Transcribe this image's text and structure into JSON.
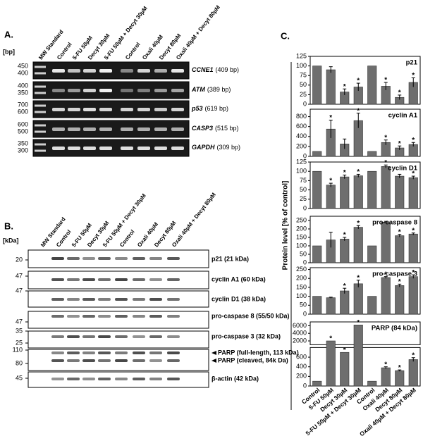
{
  "panel_a": {
    "label": "A.",
    "unit": "[bp]",
    "lanes": [
      "MW Standard",
      "Control",
      "5-FU 50µM",
      "Decyt 30µM",
      "5-FU 50µM + Decyt 30µM",
      "Control",
      "Oxali 40µM",
      "Decyt 80µM",
      "Oxali 40µM + Decyt 80µM"
    ],
    "gels": [
      {
        "gene": "CCNE1",
        "size": "(409 bp)",
        "markers": [
          "450",
          "400"
        ]
      },
      {
        "gene": "ATM",
        "size": "(389 bp)",
        "markers": [
          "400",
          "350"
        ]
      },
      {
        "gene": "p53",
        "size": "(619 bp)",
        "markers": [
          "700",
          "600"
        ]
      },
      {
        "gene": "CASP3",
        "size": "(515 bp)",
        "markers": [
          "600",
          "500"
        ]
      },
      {
        "gene": "GAPDH",
        "size": "(309 bp)",
        "markers": [
          "350",
          "300"
        ]
      }
    ]
  },
  "panel_b": {
    "label": "B.",
    "unit": "[kDa]",
    "lanes": [
      "MW Standard",
      "Control",
      "5-FU 50µM",
      "Decyt 30µM",
      "5-FU 50µM + Decyt 30µM",
      "Control",
      "Oxali 40µM",
      "Decyt 80µM",
      "Oxali 40µM + Decyt 80µM"
    ],
    "blots": [
      {
        "markers": [
          "20"
        ],
        "labels": [
          "p21 (21 kDa)"
        ]
      },
      {
        "markers": [
          "47"
        ],
        "labels": [
          "cyclin A1 (60 kDa)"
        ]
      },
      {
        "markers": [
          "47"
        ],
        "labels": [
          "cyclin D1 (38 kDa)"
        ]
      },
      {
        "markers": [
          "47"
        ],
        "labels": [
          "pro-caspase 8 (55/50 kDa)"
        ]
      },
      {
        "markers": [
          "35",
          "25"
        ],
        "labels": [
          "pro-caspase 3 (32 kDa)"
        ]
      },
      {
        "markers": [
          "110",
          "80"
        ],
        "labels": [
          "PARP (full-length, 113 kDa)",
          "PARP (cleaved, 84k Da)"
        ]
      },
      {
        "markers": [
          "45"
        ],
        "labels": [
          "β-actin (42 kDa)"
        ]
      }
    ]
  },
  "panel_c": {
    "label": "C.",
    "y_axis_label": "Protein level [% of control]"
  },
  "chart_data": [
    {
      "type": "bar",
      "title": "p21",
      "color": "#6e6e6e",
      "values": [
        100,
        90,
        32,
        45,
        100,
        47,
        18,
        57
      ],
      "errors": [
        null,
        8,
        8,
        10,
        null,
        10,
        6,
        12
      ],
      "significance": [
        null,
        null,
        "*",
        "*",
        null,
        "*",
        "*",
        "*"
      ],
      "ylim": [
        0,
        125
      ],
      "yticks": [
        0,
        25,
        50,
        75,
        100,
        125
      ]
    },
    {
      "type": "bar",
      "title": "cyclin A1",
      "color": "#6e6e6e",
      "values": [
        100,
        550,
        250,
        720,
        100,
        280,
        170,
        240
      ],
      "errors": [
        null,
        180,
        100,
        150,
        null,
        50,
        40,
        40
      ],
      "significance": [
        null,
        "*",
        null,
        "*",
        null,
        "*",
        "*",
        "*"
      ],
      "ylim": [
        0,
        950
      ],
      "yticks": [
        0,
        200,
        400,
        600,
        800
      ]
    },
    {
      "type": "bar",
      "title": "cyclin D1",
      "color": "#6e6e6e",
      "values": [
        100,
        63,
        85,
        88,
        100,
        113,
        87,
        83
      ],
      "errors": [
        null,
        5,
        5,
        4,
        null,
        4,
        5,
        4
      ],
      "significance": [
        null,
        "*",
        "*",
        "*",
        null,
        "*",
        null,
        "*"
      ],
      "ylim": [
        0,
        125
      ],
      "yticks": [
        0,
        25,
        50,
        75,
        100,
        125
      ]
    },
    {
      "type": "bar",
      "title": "pro-caspase 8",
      "color": "#6e6e6e",
      "values": [
        100,
        135,
        140,
        210,
        100,
        240,
        160,
        170
      ],
      "errors": [
        null,
        45,
        10,
        10,
        null,
        5,
        8,
        6
      ],
      "significance": [
        null,
        null,
        "*",
        "*",
        null,
        null,
        "*",
        "*"
      ],
      "ylim": [
        0,
        275
      ],
      "yticks": [
        0,
        50,
        100,
        150,
        200,
        250
      ]
    },
    {
      "type": "bar",
      "title": "pro-caspase 3",
      "color": "#6e6e6e",
      "values": [
        100,
        92,
        130,
        170,
        100,
        205,
        160,
        210
      ],
      "errors": [
        null,
        3,
        15,
        20,
        null,
        5,
        8,
        10
      ],
      "significance": [
        null,
        null,
        "*",
        "*",
        null,
        "*",
        "*",
        "*"
      ],
      "ylim": [
        0,
        260
      ],
      "yticks": [
        0,
        50,
        100,
        150,
        200,
        250
      ]
    },
    {
      "type": "bar",
      "title": "PARP (84 kDa)",
      "color": "#6e6e6e",
      "categories": [
        "Control",
        "5-FU 50µM",
        "Decyt 30µM",
        "5-FU 50µM + Decyt 30µM",
        "Control",
        "Oxali 40µM",
        "Decyt 80µM",
        "Oxali 40µM + Decyt 80µM"
      ],
      "values": [
        100,
        2000,
        700,
        6200,
        100,
        380,
        320,
        550
      ],
      "errors": [
        null,
        null,
        null,
        null,
        null,
        20,
        15,
        40
      ],
      "significance": [
        null,
        "*",
        "*",
        "*",
        null,
        "*",
        "*",
        "*"
      ],
      "ylim": [
        0,
        7000
      ],
      "axis_break": [
        800,
        1000
      ],
      "yticks": [
        0,
        200,
        400,
        600,
        2000,
        4000,
        6000
      ]
    }
  ]
}
